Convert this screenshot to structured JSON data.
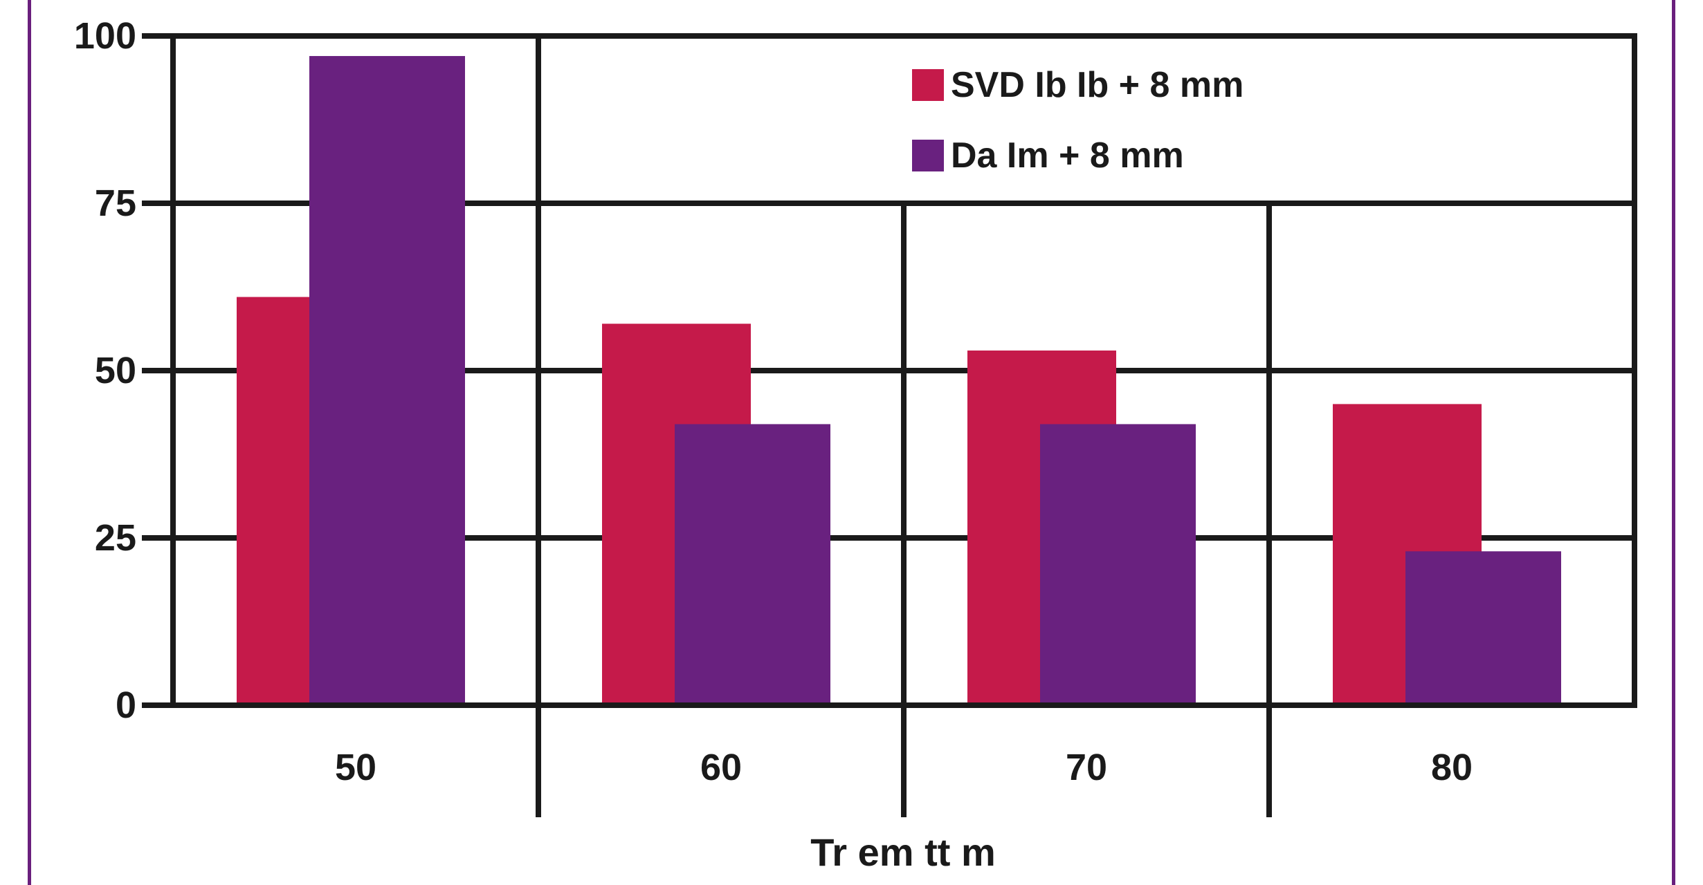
{
  "colors": {
    "series_1": "#c51a4a",
    "series_2": "#69217f",
    "grid": "#1a1a1a",
    "border": "#6a1f7d"
  },
  "chart_data": {
    "type": "bar",
    "categories": [
      "50",
      "60",
      "70",
      "80"
    ],
    "series": [
      {
        "name": "SVD Ib Ib + 8 mm",
        "values": [
          61,
          57,
          53,
          45
        ]
      },
      {
        "name": "Da Im + 8 mm",
        "values": [
          97,
          42,
          42,
          23
        ]
      }
    ],
    "ylim": [
      0,
      100
    ],
    "yticks": [
      "0",
      "25",
      "50",
      "75",
      "100"
    ],
    "xlabel": "Tr em tt m",
    "ylabel": "",
    "title": "",
    "grid": true,
    "legend": "top-right"
  }
}
